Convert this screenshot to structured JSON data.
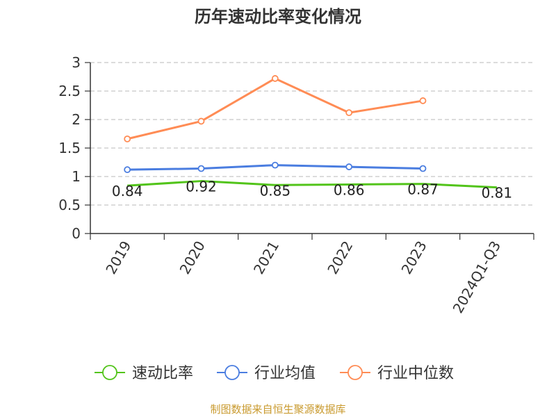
{
  "chart_data": {
    "type": "line",
    "title": "历年速动比率变化情况",
    "categories": [
      "2019",
      "2020",
      "2021",
      "2022",
      "2023",
      "2024Q1-Q3"
    ],
    "ylim": [
      0,
      3
    ],
    "yticks": [
      "0",
      "0.5",
      "1",
      "1.5",
      "2",
      "2.5",
      "3"
    ],
    "ytick_values": [
      0,
      0.5,
      1,
      1.5,
      2,
      2.5,
      3
    ],
    "grid": true,
    "legend_position": "bottom",
    "series": [
      {
        "name": "速动比率",
        "color": "#52c41a",
        "values": [
          0.84,
          0.92,
          0.85,
          0.86,
          0.87,
          0.81
        ],
        "labels": [
          "0.84",
          "0.92",
          "0.85",
          "0.86",
          "0.87",
          "0.81"
        ],
        "show_markers": false
      },
      {
        "name": "行业均值",
        "color": "#4a7de0",
        "values": [
          1.12,
          1.14,
          1.2,
          1.17,
          1.14,
          null
        ],
        "show_markers": true
      },
      {
        "name": "行业中位数",
        "color": "#ff8c55",
        "values": [
          1.66,
          1.97,
          2.72,
          2.12,
          2.33,
          null
        ],
        "show_markers": true
      }
    ]
  },
  "footer": {
    "source": "制图数据来自恒生聚源数据库",
    "source_color": "#c99a2e"
  }
}
